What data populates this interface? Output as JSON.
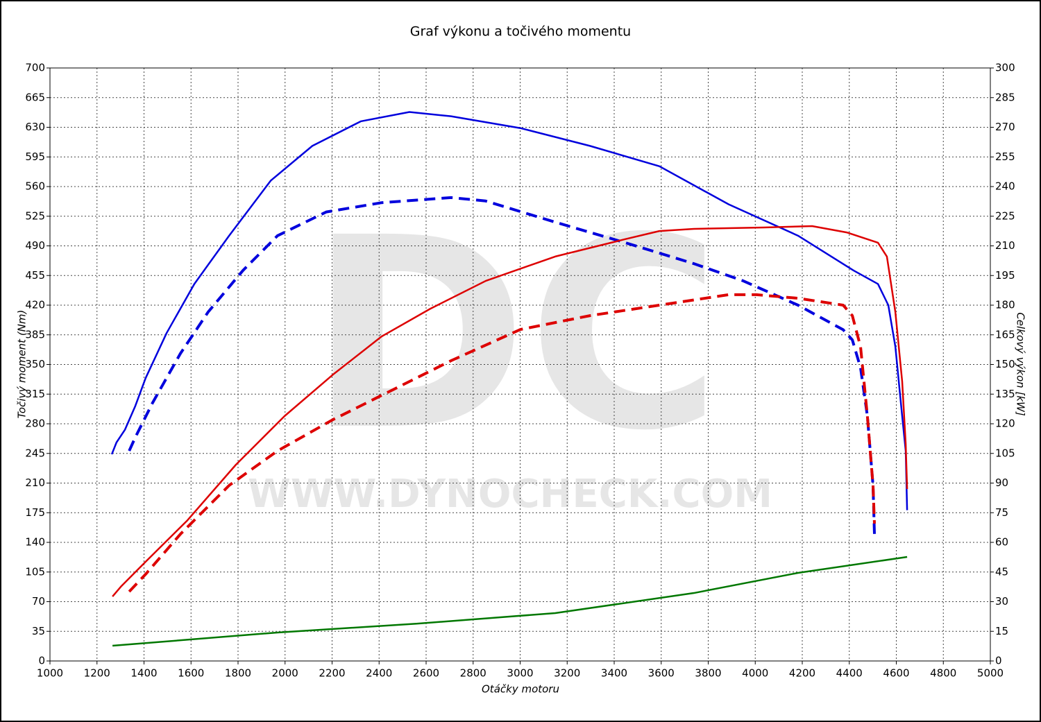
{
  "chart_data": {
    "type": "line",
    "title": "Graf výkonu a točivého momentu",
    "xlabel": "Otáčky motoru",
    "ylabel": "Točivý moment (Nm)",
    "y2label": "Celkový výkon [kW]",
    "watermark": "DC",
    "watermark_url": "WWW.DYNOCHECK.COM",
    "xlim": [
      1000,
      5000
    ],
    "xticks": [
      1000,
      1200,
      1400,
      1600,
      1800,
      2000,
      2200,
      2400,
      2600,
      2800,
      3000,
      3200,
      3400,
      3600,
      3800,
      4000,
      4200,
      4400,
      4600,
      4800,
      5000
    ],
    "ylim": [
      0,
      700
    ],
    "yticks": [
      0,
      35,
      70,
      105,
      140,
      175,
      210,
      245,
      280,
      315,
      350,
      385,
      420,
      455,
      490,
      525,
      560,
      595,
      630,
      665,
      700
    ],
    "y2lim": [
      0,
      300
    ],
    "y2ticks": [
      0,
      15,
      30,
      45,
      60,
      75,
      90,
      105,
      120,
      135,
      150,
      165,
      180,
      195,
      210,
      225,
      240,
      255,
      270,
      285,
      300
    ],
    "grid": true,
    "series": [
      {
        "color": "#0000dd",
        "dash": false,
        "axis": "y",
        "x": [
          1263,
          1283,
          1319,
          1363,
          1407,
          1496,
          1614,
          1762,
          1939,
          2116,
          2322,
          2529,
          2706,
          3001,
          3297,
          3592,
          3887,
          4182,
          4418,
          4522,
          4566,
          4596,
          4625,
          4640,
          4646
        ],
        "values": [
          244,
          258,
          273,
          301,
          334,
          387,
          445,
          502,
          567,
          608,
          637,
          648,
          643,
          629,
          608,
          584,
          539,
          502,
          461,
          445,
          420,
          371,
          289,
          248,
          178
        ]
      },
      {
        "color": "#0000dd",
        "dash": true,
        "axis": "y",
        "x": [
          1337,
          1363,
          1437,
          1555,
          1673,
          1821,
          1968,
          2175,
          2411,
          2706,
          2853,
          3149,
          3444,
          3739,
          3946,
          4182,
          4374,
          4413,
          4448,
          4477,
          4501,
          4507
        ],
        "values": [
          248,
          264,
          305,
          363,
          412,
          461,
          502,
          530,
          541,
          547,
          543,
          518,
          494,
          469,
          449,
          420,
          391,
          379,
          346,
          289,
          207,
          150
        ]
      },
      {
        "color": "#dd0000",
        "dash": false,
        "axis": "y2",
        "x": [
          1266,
          1304,
          1407,
          1585,
          1791,
          1998,
          2204,
          2411,
          2618,
          2854,
          3149,
          3444,
          3592,
          3739,
          4035,
          4242,
          4389,
          4522,
          4560,
          4596,
          4625,
          4640,
          4646
        ],
        "values": [
          32.6,
          37.9,
          50.2,
          71.2,
          99.3,
          123.9,
          144.9,
          164.2,
          178.2,
          192.3,
          204.6,
          213.3,
          217.5,
          218.6,
          219.3,
          220,
          216.8,
          211.6,
          204.6,
          176.5,
          141.4,
          109.8,
          87
        ]
      },
      {
        "color": "#dd0000",
        "dash": true,
        "axis": "y2",
        "x": [
          1337,
          1407,
          1555,
          1762,
          1968,
          2204,
          2440,
          2706,
          3001,
          3297,
          3592,
          3887,
          4005,
          4182,
          4374,
          4413,
          4448,
          4477,
          4501,
          4507
        ],
        "values": [
          35.1,
          43.9,
          64.2,
          88.8,
          106.3,
          122.1,
          136.1,
          151.9,
          167.7,
          174.7,
          180,
          185.3,
          185.3,
          183.5,
          180,
          174.7,
          158.9,
          123.9,
          88.8,
          69.5
        ]
      },
      {
        "color": "#007700",
        "dash": false,
        "axis": "y",
        "x": [
          1266,
          1968,
          2559,
          3149,
          3739,
          4182,
          4646
        ],
        "values": [
          18,
          33.6,
          44,
          56.5,
          80.2,
          104,
          122.8
        ]
      }
    ]
  }
}
